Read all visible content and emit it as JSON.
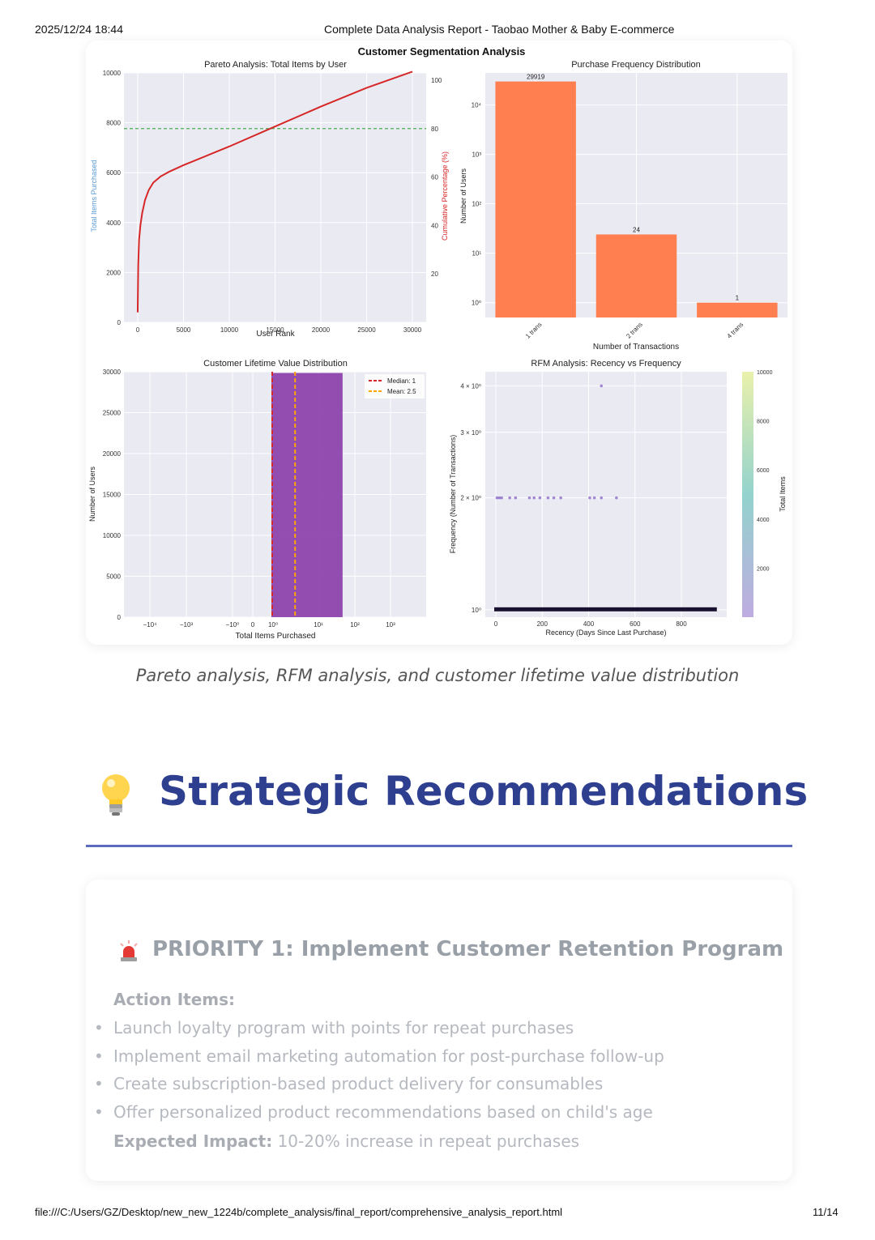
{
  "print_header": {
    "datetime": "2025/12/24 18:44",
    "doc_title": "Complete Data Analysis Report - Taobao Mother & Baby E-commerce"
  },
  "figure": {
    "suptitle": "Customer Segmentation Analysis",
    "caption": "Pareto analysis, RFM analysis, and customer lifetime value distribution"
  },
  "chart_data": [
    {
      "type": "line",
      "title": "Pareto Analysis: Total Items by User",
      "xlabel": "User Rank",
      "ylabel": "Total Items Purchased",
      "y2label": "Cumulative Percentage (%)",
      "xticks": [
        "0",
        "5000",
        "10000",
        "15000",
        "20000",
        "25000",
        "30000"
      ],
      "yticks": [
        "0",
        "2000",
        "4000",
        "6000",
        "8000",
        "10000"
      ],
      "y2ticks": [
        "20",
        "40",
        "60",
        "80",
        "100"
      ],
      "xlim": [
        -1500,
        31500
      ],
      "ylim": [
        0,
        10000
      ],
      "y2lim": [
        0,
        103
      ],
      "series": [
        {
          "x": [
            0,
            60,
            150,
            300,
            500,
            800,
            1200,
            1700,
            2500,
            3500,
            5000,
            10000,
            15000,
            20000,
            25000,
            30000
          ],
          "y": [
            400,
            2300,
            3300,
            3900,
            4400,
            4900,
            5300,
            5600,
            5850,
            6050,
            6300,
            7050,
            7850,
            8650,
            9400,
            10050
          ],
          "color": "#d62728"
        }
      ],
      "reference_line": {
        "value": 80,
        "axis": "y2",
        "color": "#4caf50"
      },
      "colors": {
        "left_axis_label": "#5b9bd5",
        "right_axis_label": "#d62728"
      },
      "grid": true
    },
    {
      "type": "bar",
      "title": "Purchase Frequency Distribution",
      "xlabel": "Number of Transactions",
      "ylabel": "Number of Users",
      "scale": "log",
      "categories": [
        "1 trans",
        "2 trans",
        "4 trans"
      ],
      "values": [
        29919,
        24,
        1
      ],
      "data_labels": [
        "29919",
        "24",
        "1"
      ],
      "yticks": [
        "10⁰",
        "10¹",
        "10²",
        "10³",
        "10⁴"
      ],
      "color": "#ff7f50",
      "grid": true
    },
    {
      "type": "bar",
      "title": "Customer Lifetime Value Distribution",
      "xlabel": "Total Items Purchased",
      "ylabel": "Number of Users",
      "xscale": "symlog",
      "xticks": [
        "−10⁴",
        "−10³",
        "−10⁰",
        "0",
        "10⁰",
        "10¹",
        "10²",
        "10³"
      ],
      "yticks": [
        "0",
        "5000",
        "10000",
        "15000",
        "20000",
        "25000",
        "30000"
      ],
      "ylim": [
        0,
        30000
      ],
      "bins": [
        {
          "from": 1,
          "to": 60,
          "count": 29850
        }
      ],
      "color": "#8e44ad",
      "legend": {
        "position": "top-right",
        "entries": [
          "Median: 1",
          "Mean: 2.5"
        ]
      },
      "median": 1,
      "mean": 2.5,
      "median_color": "#d62728",
      "mean_color": "#ffa500",
      "grid": true
    },
    {
      "type": "scatter",
      "title": "RFM Analysis: Recency vs Frequency",
      "xlabel": "Recency (Days Since Last Purchase)",
      "ylabel": "Frequency (Number of Transactions)",
      "yscale": "log",
      "xticks": [
        "0",
        "200",
        "400",
        "600",
        "800"
      ],
      "yticks": [
        "10⁰",
        "2 × 10⁰",
        "3 × 10⁰",
        "4 × 10⁰"
      ],
      "colorbar": {
        "label": "Total Items",
        "ticks": [
          "2000",
          "4000",
          "6000",
          "8000",
          "10000"
        ]
      },
      "points": [
        {
          "recency": 455,
          "frequency": 4
        },
        {
          "recency": 5,
          "frequency": 2
        },
        {
          "recency": 15,
          "frequency": 2
        },
        {
          "recency": 25,
          "frequency": 2
        },
        {
          "recency": 60,
          "frequency": 2
        },
        {
          "recency": 85,
          "frequency": 2
        },
        {
          "recency": 145,
          "frequency": 2
        },
        {
          "recency": 165,
          "frequency": 2
        },
        {
          "recency": 190,
          "frequency": 2
        },
        {
          "recency": 225,
          "frequency": 2
        },
        {
          "recency": 250,
          "frequency": 2
        },
        {
          "recency": 280,
          "frequency": 2
        },
        {
          "recency": 405,
          "frequency": 2
        },
        {
          "recency": 425,
          "frequency": 2
        },
        {
          "recency": 455,
          "frequency": 2
        },
        {
          "recency": 520,
          "frequency": 2
        }
      ],
      "band": {
        "frequency": 1,
        "recency_from": 0,
        "recency_to": 960
      },
      "grid": true
    }
  ],
  "section": {
    "icon": "lightbulb-icon",
    "title": "Strategic Recommendations"
  },
  "priority": {
    "icon": "siren-icon",
    "title": "PRIORITY 1: Implement Customer Retention Program",
    "action_label": "Action Items:",
    "items": [
      "Launch loyalty program with points for repeat purchases",
      "Implement email marketing automation for post-purchase follow-up",
      "Create subscription-based product delivery for consumables",
      "Offer personalized product recommendations based on child's age"
    ],
    "impact_label": "Expected Impact:",
    "impact_value": "10-20% increase in repeat purchases"
  },
  "print_footer": {
    "file_path": "file:///C:/Users/GZ/Desktop/new_new_1224b/complete_analysis/final_report/comprehensive_analysis_report.html",
    "page": "11/14"
  },
  "bullet_glyph": "•"
}
